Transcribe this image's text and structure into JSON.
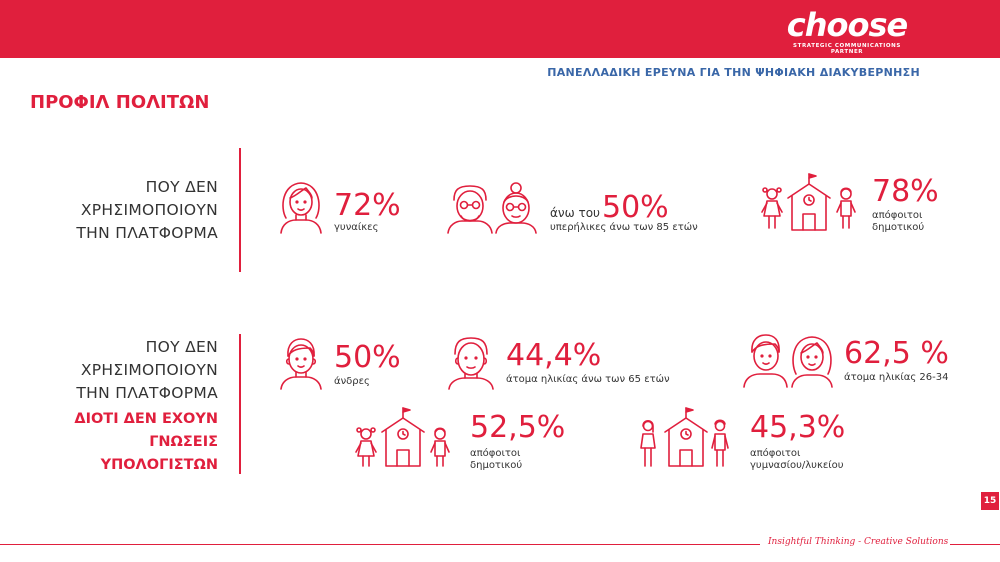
{
  "header": {
    "logo_word": "choose",
    "logo_tagline": "STRATEGIC COMMUNICATIONS PARTNER",
    "survey_title": "ΠΑΝΕΛΛΑΔΙΚΗ ΕΡΕΥΝΑ ΓΙΑ ΤΗΝ ΨΗΦΙΑΚΗ ΔΙΑΚΥΒΕΡΝΗΣΗ",
    "accent_color": "#e01f3d"
  },
  "page_title": "ΠΡΟΦΙΛ ΠΟΛΙΤΩΝ",
  "section1": {
    "label": [
      "ΠΟΥ ΔΕΝ",
      "ΧΡΗΣΙΜΟΠΟΙΟΥΝ",
      "ΤΗΝ ΠΛΑΤΦΟΡΜΑ"
    ],
    "stats": [
      {
        "icon": "woman-icon",
        "value": "72%",
        "prefix": "",
        "caption": [
          "γυναίκες"
        ]
      },
      {
        "icon": "elderly-couple-icon",
        "value": "50%",
        "prefix": "άνω του",
        "caption": [
          "υπερήλικες άνω των 85 ετών"
        ]
      },
      {
        "icon": "school-icon",
        "value": "78%",
        "prefix": "",
        "caption": [
          "απόφοιτοι",
          "δημοτικού"
        ]
      }
    ]
  },
  "section2": {
    "label": [
      "ΠΟΥ ΔΕΝ",
      "ΧΡΗΣΙΜΟΠΟΙΟΥΝ",
      "ΤΗΝ ΠΛΑΤΦΟΡΜΑ"
    ],
    "reason": [
      "ΔΙΟΤΙ ΔΕΝ ΕΧΟΥΝ",
      "ΓΝΩΣΕΙΣ",
      "ΥΠΟΛΟΓΙΣΤΩΝ"
    ],
    "stats": [
      {
        "icon": "man-icon",
        "value": "50%",
        "prefix": "",
        "caption": [
          "άνδρες"
        ]
      },
      {
        "icon": "elderly-man-icon",
        "value": "44,4%",
        "prefix": "",
        "caption": [
          "άτομα ηλικίας άνω των 65 ετών"
        ]
      },
      {
        "icon": "young-couple-icon",
        "value": "62,5 %",
        "prefix": "",
        "caption": [
          "άτομα ηλικίας 26-34"
        ]
      },
      {
        "icon": "school-icon",
        "value": "52,5%",
        "prefix": "",
        "caption": [
          "απόφοιτοι",
          "δημοτικού"
        ]
      },
      {
        "icon": "school-teens-icon",
        "value": "45,3%",
        "prefix": "",
        "caption": [
          "απόφοιτοι",
          "γυμνασίου/λυκείου"
        ]
      }
    ]
  },
  "footer": {
    "slogan": "Insightful Thinking - Creative Solutions",
    "page_number": "15"
  }
}
